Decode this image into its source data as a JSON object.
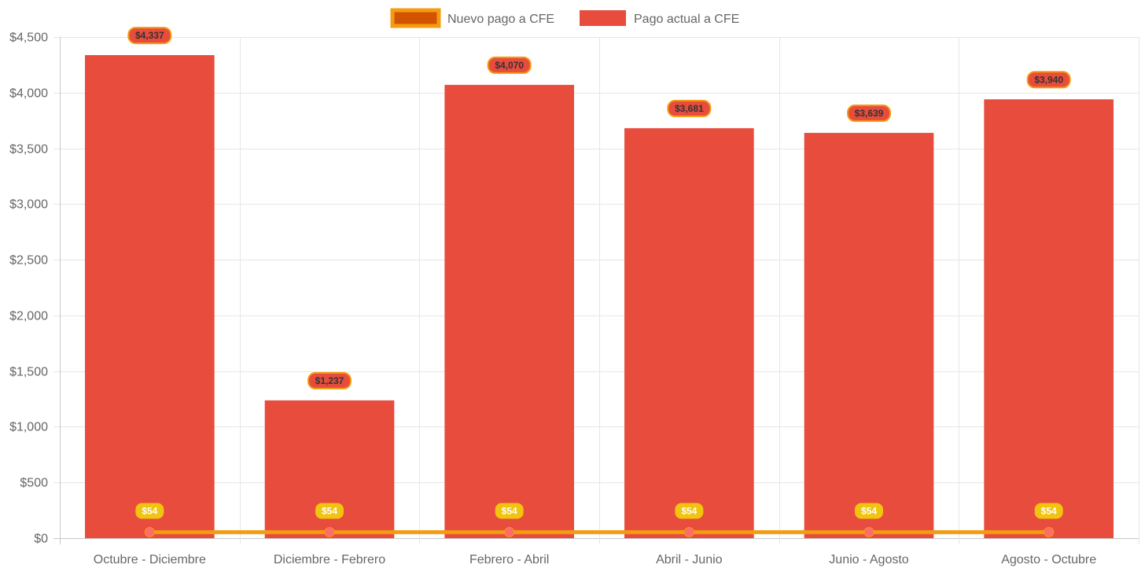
{
  "chart_data": {
    "type": "bar",
    "categories": [
      "Octubre - Diciembre",
      "Diciembre - Febrero",
      "Febrero - Abril",
      "Abril - Junio",
      "Junio - Agosto",
      "Agosto - Octubre"
    ],
    "series": [
      {
        "name": "Nuevo pago a CFE",
        "type": "line",
        "values": [
          54,
          54,
          54,
          54,
          54,
          54
        ],
        "labels": [
          "$54",
          "$54",
          "$54",
          "$54",
          "$54",
          "$54"
        ],
        "color": "#f39c12",
        "point_color": "#ff6b6b",
        "legend_fill": "#d35400",
        "label_bg": "#f1c40f"
      },
      {
        "name": "Pago actual a CFE",
        "type": "bar",
        "values": [
          4337,
          1237,
          4070,
          3681,
          3639,
          3940
        ],
        "labels": [
          "$4,337",
          "$1,237",
          "$4,070",
          "$3,681",
          "$3,639",
          "$3,940"
        ],
        "color": "#e74c3c",
        "label_border": "#f39c12"
      }
    ],
    "ylim": [
      0,
      4500
    ],
    "yticks": [
      {
        "value": 0,
        "label": "$0"
      },
      {
        "value": 500,
        "label": "$500"
      },
      {
        "value": 1000,
        "label": "$1,000"
      },
      {
        "value": 1500,
        "label": "$1,500"
      },
      {
        "value": 2000,
        "label": "$2,000"
      },
      {
        "value": 2500,
        "label": "$2,500"
      },
      {
        "value": 3000,
        "label": "$3,000"
      },
      {
        "value": 3500,
        "label": "$3,500"
      },
      {
        "value": 4000,
        "label": "$4,000"
      },
      {
        "value": 4500,
        "label": "$4,500"
      }
    ],
    "grid": true,
    "legend_position": "top"
  }
}
